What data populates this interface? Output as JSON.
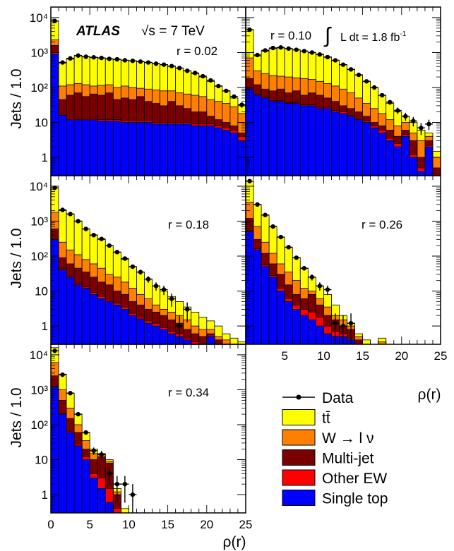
{
  "experiment": "ATLAS",
  "energy_label": "√s = 7 TeV",
  "lumi_label": "L dt = 1.8 fb",
  "lumi_sup": "-1",
  "ylabel": "Jets / 1.0",
  "xlabel": "ρ(r)",
  "y_ticks": [
    "10⁴",
    "10³",
    "10²",
    "10",
    "1"
  ],
  "x_ticks": [
    "0",
    "5",
    "10",
    "15",
    "20",
    "25"
  ],
  "x_ticks_right": [
    "5",
    "10",
    "15",
    "20",
    "25"
  ],
  "legend": [
    {
      "label": "Data",
      "type": "marker",
      "color": "#000000"
    },
    {
      "label": "tt̄",
      "type": "fill",
      "color": "#ffff00"
    },
    {
      "label": "W → l ν",
      "type": "fill",
      "color": "#ff7f00"
    },
    {
      "label": "Multi-jet",
      "type": "fill",
      "color": "#7a0000"
    },
    {
      "label": "Other EW",
      "type": "fill",
      "color": "#ff0000"
    },
    {
      "label": "Single top",
      "type": "fill",
      "color": "#0000ff"
    }
  ],
  "chart_data": [
    {
      "type": "area",
      "subtitle": "r = 0.02",
      "xlim": [
        0,
        25
      ],
      "ylim": [
        0.3,
        20000
      ],
      "yscale": "log",
      "bin_edges": [
        0,
        1,
        2,
        3,
        4,
        5,
        6,
        7,
        8,
        9,
        10,
        11,
        12,
        13,
        14,
        15,
        16,
        17,
        18,
        19,
        20,
        21,
        22,
        23,
        24,
        25
      ],
      "series": [
        {
          "name": "Single top",
          "values": [
            900,
            16,
            12,
            12,
            12,
            12,
            11,
            11,
            11,
            10,
            10,
            10,
            10,
            9,
            9,
            9,
            9,
            9,
            8,
            8,
            8,
            7,
            6,
            5,
            3
          ]
        },
        {
          "name": "Other EW",
          "values": [
            1000,
            17,
            13,
            13,
            13,
            13,
            12,
            12,
            12,
            11,
            11,
            11,
            11,
            10,
            10,
            10,
            10,
            10,
            9,
            9,
            9,
            8,
            7,
            6,
            4
          ]
        },
        {
          "name": "Multi-jet",
          "values": [
            1600,
            45,
            60,
            70,
            55,
            65,
            60,
            70,
            45,
            50,
            45,
            55,
            40,
            35,
            30,
            40,
            30,
            25,
            20,
            20,
            15,
            12,
            10,
            8,
            5
          ]
        },
        {
          "name": "W → l ν",
          "values": [
            2300,
            110,
            120,
            130,
            120,
            110,
            115,
            120,
            100,
            110,
            100,
            95,
            90,
            85,
            80,
            80,
            70,
            65,
            60,
            55,
            45,
            40,
            35,
            28,
            18
          ]
        },
        {
          "name": "tt̄",
          "values": [
            8000,
            500,
            650,
            800,
            750,
            720,
            700,
            650,
            630,
            600,
            580,
            550,
            520,
            480,
            450,
            400,
            360,
            300,
            250,
            200,
            150,
            110,
            80,
            50,
            30
          ]
        }
      ],
      "data_x": [
        0.5,
        1.5,
        2.5,
        3.5,
        4.5,
        5.5,
        6.5,
        7.5,
        8.5,
        9.5,
        10.5,
        11.5,
        12.5,
        13.5,
        14.5,
        15.5,
        16.5,
        17.5,
        18.5,
        19.5,
        20.5,
        21.5,
        22.5,
        23.5,
        24.5
      ],
      "data_y": [
        8000,
        520,
        680,
        820,
        760,
        730,
        700,
        660,
        640,
        600,
        580,
        550,
        520,
        480,
        450,
        410,
        360,
        300,
        260,
        210,
        160,
        110,
        80,
        55,
        32
      ]
    },
    {
      "type": "area",
      "subtitle": "r = 0.10",
      "xlim": [
        0,
        25
      ],
      "ylim": [
        0.3,
        20000
      ],
      "yscale": "log",
      "bin_edges": [
        0,
        1,
        2,
        3,
        4,
        5,
        6,
        7,
        8,
        9,
        10,
        11,
        12,
        13,
        14,
        15,
        16,
        17,
        18,
        19,
        20,
        21,
        22,
        23,
        24,
        25
      ],
      "series": [
        {
          "name": "Single top",
          "values": [
            90,
            60,
            50,
            40,
            40,
            35,
            35,
            30,
            30,
            25,
            25,
            20,
            18,
            15,
            12,
            10,
            7,
            5,
            3,
            2,
            4,
            1,
            0.4,
            2,
            0
          ]
        },
        {
          "name": "Other EW",
          "values": [
            95,
            63,
            53,
            42,
            42,
            37,
            37,
            32,
            32,
            27,
            27,
            22,
            20,
            16,
            13,
            11,
            8,
            6,
            3.5,
            2.5,
            4.5,
            1.2,
            0.5,
            2.2,
            0
          ]
        },
        {
          "name": "Multi-jet",
          "values": [
            180,
            120,
            90,
            80,
            90,
            70,
            80,
            60,
            70,
            60,
            50,
            40,
            30,
            25,
            20,
            15,
            10,
            8,
            6,
            4,
            6,
            3,
            1,
            3,
            0.5
          ]
        },
        {
          "name": "W → l ν",
          "values": [
            700,
            300,
            250,
            220,
            210,
            200,
            190,
            180,
            170,
            150,
            130,
            110,
            90,
            70,
            50,
            35,
            25,
            18,
            12,
            8,
            10,
            5,
            3,
            4,
            1
          ]
        },
        {
          "name": "tt̄",
          "values": [
            4500,
            800,
            1100,
            1300,
            1350,
            1300,
            1200,
            1100,
            1000,
            900,
            750,
            600,
            450,
            330,
            230,
            150,
            100,
            60,
            35,
            20,
            15,
            10,
            6,
            5,
            1.5
          ]
        }
      ],
      "data_x": [
        0.5,
        1.5,
        2.5,
        3.5,
        4.5,
        5.5,
        6.5,
        7.5,
        8.5,
        9.5,
        10.5,
        11.5,
        12.5,
        13.5,
        14.5,
        15.5,
        16.5,
        17.5,
        18.5,
        19.5,
        20.5,
        21.5,
        22.5,
        23.5
      ],
      "data_y": [
        4500,
        850,
        1150,
        1350,
        1400,
        1300,
        1200,
        1100,
        1000,
        880,
        740,
        600,
        450,
        330,
        230,
        150,
        100,
        60,
        38,
        22,
        15,
        11,
        7,
        9
      ]
    },
    {
      "type": "area",
      "subtitle": "r = 0.18",
      "xlim": [
        0,
        25
      ],
      "ylim": [
        0.3,
        20000
      ],
      "yscale": "log",
      "bin_edges": [
        0,
        1,
        2,
        3,
        4,
        5,
        6,
        7,
        8,
        9,
        10,
        11,
        12,
        13,
        14,
        15,
        16,
        17,
        18,
        19,
        20,
        21,
        22,
        23,
        24,
        25
      ],
      "series": [
        {
          "name": "Single top",
          "values": [
            300,
            40,
            25,
            15,
            12,
            8,
            6,
            5,
            4,
            3,
            2,
            1.6,
            1.2,
            1,
            0.8,
            0.6,
            0.5,
            0.4,
            0.3,
            0.3,
            0.5,
            0.3,
            0.3,
            0.3,
            0.3
          ]
        },
        {
          "name": "Other EW",
          "values": [
            320,
            43,
            27,
            16,
            13,
            9,
            7,
            5.5,
            4.5,
            3.5,
            2.3,
            1.8,
            1.4,
            1.2,
            0.9,
            0.7,
            0.6,
            0.45,
            0.35,
            0.3,
            0.55,
            0.3,
            0.3,
            0.3,
            0.3
          ]
        },
        {
          "name": "Multi-jet",
          "values": [
            600,
            90,
            60,
            45,
            35,
            25,
            18,
            15,
            10,
            8,
            5,
            4,
            3,
            2.5,
            2,
            1.5,
            1.2,
            0.8,
            0.6,
            0.5,
            0.6,
            0.4,
            0.3,
            0.3,
            0.3
          ]
        },
        {
          "name": "W → l ν",
          "values": [
            1800,
            250,
            150,
            110,
            80,
            60,
            45,
            30,
            25,
            18,
            12,
            8,
            6,
            4,
            3,
            2.5,
            2,
            1.5,
            1,
            0.8,
            0.8,
            0.5,
            0.4,
            0.3,
            0.3
          ]
        },
        {
          "name": "tt̄",
          "values": [
            9000,
            2000,
            1600,
            1000,
            600,
            400,
            300,
            200,
            130,
            80,
            50,
            35,
            22,
            14,
            10,
            7,
            5,
            3.5,
            2.5,
            1.8,
            1.4,
            1,
            0.6,
            0.45,
            0.35
          ]
        }
      ],
      "data_x": [
        0.5,
        1.5,
        2.5,
        3.5,
        4.5,
        5.5,
        6.5,
        7.5,
        8.5,
        9.5,
        10.5,
        11.5,
        12.5,
        13.5,
        14.5,
        15.5,
        16.5,
        17.5
      ],
      "data_y": [
        9000,
        2100,
        1600,
        1000,
        600,
        400,
        310,
        200,
        130,
        85,
        50,
        35,
        22,
        14,
        11,
        6,
        1,
        3
      ]
    },
    {
      "type": "area",
      "subtitle": "r = 0.26",
      "xlim": [
        0,
        25
      ],
      "ylim": [
        0.3,
        20000
      ],
      "yscale": "log",
      "bin_edges": [
        0,
        1,
        2,
        3,
        4,
        5,
        6,
        7,
        8,
        9,
        10,
        11,
        12,
        13,
        14,
        15,
        16,
        17,
        18,
        19,
        20,
        21,
        22,
        23,
        24,
        25
      ],
      "series": [
        {
          "name": "Single top",
          "values": [
            500,
            150,
            50,
            25,
            10,
            5,
            3,
            2,
            1.5,
            1,
            0.6,
            0.5,
            0.5,
            0.4,
            0.3,
            0.3,
            0.3,
            0.3,
            0.3,
            0.3,
            0.3,
            0.3,
            0.3,
            0.3,
            0.3
          ]
        },
        {
          "name": "Other EW",
          "values": [
            530,
            160,
            55,
            28,
            12,
            6,
            4,
            3,
            2.5,
            1.8,
            1,
            0.7,
            0.6,
            0.45,
            0.3,
            0.3,
            0.3,
            0.3,
            0.3,
            0.3,
            0.3,
            0.3,
            0.3,
            0.3,
            0.3
          ]
        },
        {
          "name": "Multi-jet",
          "values": [
            1200,
            300,
            120,
            60,
            30,
            15,
            8,
            6,
            8,
            4,
            2,
            1.5,
            1,
            0.8,
            0.4,
            0.3,
            0.3,
            0.3,
            0.3,
            0.3,
            0.3,
            0.3,
            0.3,
            0.3,
            0.3
          ]
        },
        {
          "name": "W → l ν",
          "values": [
            3500,
            700,
            250,
            120,
            60,
            35,
            20,
            12,
            10,
            6,
            3.5,
            2,
            1.5,
            1,
            0.5,
            0.3,
            0.3,
            0.35,
            0.3,
            0.3,
            0.3,
            0.3,
            0.3,
            0.3,
            0.3
          ]
        },
        {
          "name": "tt̄",
          "values": [
            14000,
            3000,
            1500,
            700,
            350,
            180,
            90,
            45,
            25,
            14,
            8,
            4,
            2,
            1.2,
            0.6,
            0.4,
            0.3,
            0.45,
            0.3,
            0.3,
            0.3,
            0.3,
            0.3,
            0.3,
            0.3
          ]
        }
      ],
      "data_x": [
        0.5,
        1.5,
        2.5,
        3.5,
        4.5,
        5.5,
        6.5,
        7.5,
        8.5,
        9.5,
        10.5,
        11.5,
        12.5,
        13.5
      ],
      "data_y": [
        14000,
        3000,
        1500,
        700,
        350,
        180,
        90,
        45,
        25,
        14,
        11,
        1.2,
        1,
        1.2
      ]
    },
    {
      "type": "area",
      "subtitle": "r = 0.34",
      "xlim": [
        0,
        25
      ],
      "ylim": [
        0.3,
        20000
      ],
      "yscale": "log",
      "bin_edges": [
        0,
        1,
        2,
        3,
        4,
        5,
        6,
        7,
        8,
        9,
        10,
        11,
        12,
        13,
        14,
        15,
        16,
        17,
        18,
        19,
        20,
        21,
        22,
        23,
        24,
        25
      ],
      "series": [
        {
          "name": "Single top",
          "values": [
            1200,
            200,
            60,
            25,
            10,
            3,
            1.5,
            0.6,
            0.3,
            0.3,
            0.3,
            0.3,
            0.3,
            0.3,
            0.3,
            0.3,
            0.3,
            0.3,
            0.3,
            0.3,
            0.3,
            0.3,
            0.3,
            0.3,
            0.3
          ]
        },
        {
          "name": "Other EW",
          "values": [
            1250,
            210,
            65,
            28,
            12,
            4,
            3,
            1.5,
            0.4,
            0.3,
            0.3,
            0.3,
            0.3,
            0.3,
            0.3,
            0.3,
            0.3,
            0.3,
            0.3,
            0.3,
            0.3,
            0.3,
            0.3,
            0.3,
            0.3
          ]
        },
        {
          "name": "Multi-jet",
          "values": [
            2500,
            500,
            150,
            60,
            20,
            10,
            12,
            8,
            1,
            0.3,
            0.3,
            0.3,
            0.3,
            0.3,
            0.3,
            0.3,
            0.3,
            0.3,
            0.3,
            0.3,
            0.3,
            0.3,
            0.3,
            0.3,
            0.3
          ]
        },
        {
          "name": "W → l ν",
          "values": [
            6000,
            1000,
            300,
            100,
            35,
            15,
            14,
            9,
            1.2,
            0.3,
            0.3,
            0.3,
            0.3,
            0.3,
            0.3,
            0.3,
            0.3,
            0.3,
            0.3,
            0.3,
            0.3,
            0.3,
            0.3,
            0.3,
            0.3
          ]
        },
        {
          "name": "tt̄",
          "values": [
            16000,
            2800,
            800,
            200,
            60,
            20,
            15,
            10,
            1.5,
            0.4,
            0.3,
            0.3,
            0.3,
            0.3,
            0.3,
            0.3,
            0.3,
            0.3,
            0.3,
            0.3,
            0.3,
            0.3,
            0.3,
            0.3,
            0.3
          ]
        }
      ],
      "data_x": [
        0.5,
        1.5,
        2.5,
        3.5,
        4.5,
        5.5,
        6.5,
        7.5,
        8.5,
        9.5,
        10.5
      ],
      "data_y": [
        13000,
        2700,
        800,
        200,
        60,
        18,
        14,
        4,
        2,
        2,
        1
      ]
    }
  ]
}
